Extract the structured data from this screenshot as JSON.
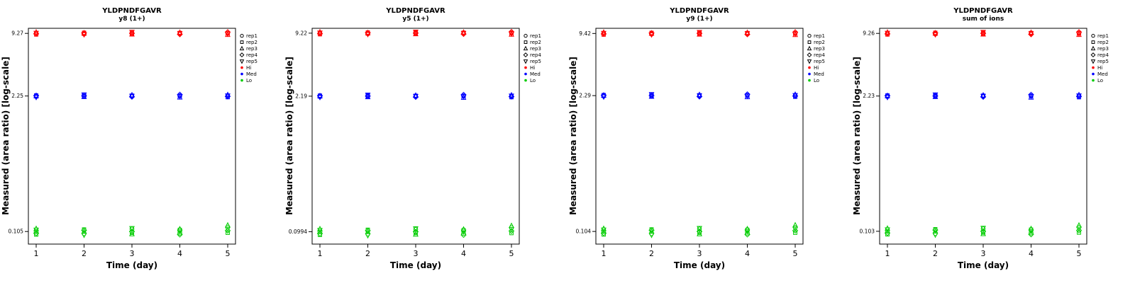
{
  "legend": {
    "items": [
      {
        "label": "rep1",
        "symbol": "circle"
      },
      {
        "label": "rep2",
        "symbol": "square"
      },
      {
        "label": "rep3",
        "symbol": "triangle-up"
      },
      {
        "label": "rep4",
        "symbol": "diamond"
      },
      {
        "label": "rep5",
        "symbol": "triangle-down"
      }
    ],
    "groups": [
      {
        "label": "Hi",
        "color": "#FF0000"
      },
      {
        "label": "Med",
        "color": "#0000FF"
      },
      {
        "label": "Lo",
        "color": "#00CC00"
      }
    ]
  },
  "chart_data": [
    {
      "type": "scatter",
      "title": "YLDPNDFGAVR",
      "subtitle": "y8 (1+)",
      "xlabel": "Time (day)",
      "ylabel": "Measured (area ratio) [log-scale]",
      "yscale": "log",
      "x": [
        1,
        2,
        3,
        4,
        5
      ],
      "ylim": [
        0.079,
        10.4
      ],
      "ytick_values": [
        9.27,
        2.25,
        0.105
      ],
      "ytick_labels": [
        "9.27",
        "2.25",
        "0.105"
      ],
      "series": [
        {
          "name": "Hi",
          "color": "#FF0000",
          "rep_values": [
            [
              9.27,
              9.04,
              9.5,
              9.18,
              9.36
            ],
            [
              9.13,
              9.41,
              9.27,
              9.36,
              9.04
            ],
            [
              9.46,
              9.18,
              9.08,
              9.27,
              9.55
            ],
            [
              9.18,
              9.36,
              9.46,
              9.08,
              9.27
            ],
            [
              9.36,
              9.27,
              8.99,
              9.55,
              9.18
            ]
          ]
        },
        {
          "name": "Med",
          "color": "#0000FF",
          "rep_values": [
            [
              2.22,
              2.28,
              2.25,
              2.27,
              2.19
            ],
            [
              2.3,
              2.23,
              2.21,
              2.25,
              2.32
            ],
            [
              2.23,
              2.27,
              2.3,
              2.21,
              2.25
            ],
            [
              2.27,
              2.25,
              2.18,
              2.32,
              2.23
            ],
            [
              2.25,
              2.19,
              2.31,
              2.23,
              2.27
            ]
          ]
        },
        {
          "name": "Lo",
          "color": "#00CC00",
          "rep_values": [
            [
              0.105,
              0.098,
              0.112,
              0.101,
              0.109
            ],
            [
              0.1,
              0.11,
              0.105,
              0.108,
              0.097
            ],
            [
              0.111,
              0.102,
              0.099,
              0.105,
              0.113
            ],
            [
              0.101,
              0.109,
              0.111,
              0.098,
              0.105
            ],
            [
              0.116,
              0.102,
              0.121,
              0.107,
              0.111
            ]
          ]
        }
      ]
    },
    {
      "type": "scatter",
      "title": "YLDPNDFGAVR",
      "subtitle": "y5 (1+)",
      "xlabel": "Time (day)",
      "ylabel": "Measured (area ratio) [log-scale]",
      "yscale": "log",
      "x": [
        1,
        2,
        3,
        4,
        5
      ],
      "ylim": [
        0.075,
        10.3
      ],
      "ytick_values": [
        9.22,
        2.19,
        0.0994
      ],
      "ytick_labels": [
        "9.22",
        "2.19",
        "0.0994"
      ],
      "series": [
        {
          "name": "Hi",
          "color": "#FF0000",
          "rep_values": [
            [
              9.22,
              8.99,
              9.45,
              9.13,
              9.31
            ],
            [
              9.08,
              9.36,
              9.22,
              9.31,
              8.99
            ],
            [
              9.4,
              9.13,
              9.04,
              9.22,
              9.5
            ],
            [
              9.13,
              9.31,
              9.4,
              9.04,
              9.22
            ],
            [
              9.31,
              9.22,
              8.94,
              9.5,
              9.13
            ]
          ]
        },
        {
          "name": "Med",
          "color": "#0000FF",
          "rep_values": [
            [
              2.16,
              2.22,
              2.19,
              2.21,
              2.14
            ],
            [
              2.23,
              2.17,
              2.15,
              2.19,
              2.26
            ],
            [
              2.17,
              2.21,
              2.23,
              2.15,
              2.19
            ],
            [
              2.21,
              2.19,
              2.12,
              2.26,
              2.17
            ],
            [
              2.19,
              2.14,
              2.24,
              2.17,
              2.21
            ]
          ]
        },
        {
          "name": "Lo",
          "color": "#00CC00",
          "rep_values": [
            [
              0.0994,
              0.0924,
              0.106,
              0.0954,
              0.103
            ],
            [
              0.0944,
              0.104,
              0.0994,
              0.102,
              0.0914
            ],
            [
              0.105,
              0.0964,
              0.0934,
              0.0994,
              0.107
            ],
            [
              0.0954,
              0.103,
              0.105,
              0.0924,
              0.0994
            ],
            [
              0.109,
              0.0964,
              0.114,
              0.101,
              0.105
            ]
          ]
        }
      ]
    },
    {
      "type": "scatter",
      "title": "YLDPNDFGAVR",
      "subtitle": "y9 (1+)",
      "xlabel": "Time (day)",
      "ylabel": "Measured (area ratio) [log-scale]",
      "yscale": "log",
      "x": [
        1,
        2,
        3,
        4,
        5
      ],
      "ylim": [
        0.078,
        10.6
      ],
      "ytick_values": [
        9.42,
        2.29,
        0.104
      ],
      "ytick_labels": [
        "9.42",
        "2.29",
        "0.104"
      ],
      "series": [
        {
          "name": "Hi",
          "color": "#FF0000",
          "rep_values": [
            [
              9.42,
              9.18,
              9.66,
              9.33,
              9.51
            ],
            [
              9.28,
              9.56,
              9.42,
              9.51,
              9.18
            ],
            [
              9.61,
              9.33,
              9.23,
              9.42,
              9.7
            ],
            [
              9.33,
              9.51,
              9.61,
              9.23,
              9.42
            ],
            [
              9.51,
              9.42,
              9.14,
              9.7,
              9.33
            ]
          ]
        },
        {
          "name": "Med",
          "color": "#0000FF",
          "rep_values": [
            [
              2.26,
              2.32,
              2.29,
              2.31,
              2.23
            ],
            [
              2.34,
              2.27,
              2.24,
              2.29,
              2.36
            ],
            [
              2.27,
              2.31,
              2.34,
              2.24,
              2.29
            ],
            [
              2.31,
              2.29,
              2.22,
              2.36,
              2.27
            ],
            [
              2.29,
              2.23,
              2.35,
              2.27,
              2.31
            ]
          ]
        },
        {
          "name": "Lo",
          "color": "#00CC00",
          "rep_values": [
            [
              0.104,
              0.097,
              0.111,
              0.1,
              0.108
            ],
            [
              0.099,
              0.109,
              0.104,
              0.107,
              0.096
            ],
            [
              0.11,
              0.101,
              0.098,
              0.104,
              0.112
            ],
            [
              0.1,
              0.108,
              0.11,
              0.097,
              0.104
            ],
            [
              0.114,
              0.101,
              0.12,
              0.106,
              0.11
            ]
          ]
        }
      ]
    },
    {
      "type": "scatter",
      "title": "YLDPNDFGAVR",
      "subtitle": "sum of ions",
      "xlabel": "Time (day)",
      "ylabel": "Measured (area ratio) [log-scale]",
      "yscale": "log",
      "x": [
        1,
        2,
        3,
        4,
        5
      ],
      "ylim": [
        0.077,
        10.4
      ],
      "ytick_values": [
        9.26,
        2.23,
        0.103
      ],
      "ytick_labels": [
        "9.26",
        "2.23",
        "0.103"
      ],
      "series": [
        {
          "name": "Hi",
          "color": "#FF0000",
          "rep_values": [
            [
              9.26,
              9.03,
              9.49,
              9.17,
              9.35
            ],
            [
              9.12,
              9.4,
              9.26,
              9.35,
              9.03
            ],
            [
              9.45,
              9.17,
              9.07,
              9.26,
              9.54
            ],
            [
              9.17,
              9.35,
              9.45,
              9.07,
              9.26
            ],
            [
              9.35,
              9.26,
              8.98,
              9.54,
              9.17
            ]
          ]
        },
        {
          "name": "Med",
          "color": "#0000FF",
          "rep_values": [
            [
              2.2,
              2.26,
              2.23,
              2.25,
              2.17
            ],
            [
              2.27,
              2.21,
              2.19,
              2.23,
              2.3
            ],
            [
              2.21,
              2.25,
              2.27,
              2.19,
              2.23
            ],
            [
              2.25,
              2.23,
              2.16,
              2.3,
              2.21
            ],
            [
              2.23,
              2.17,
              2.29,
              2.21,
              2.25
            ]
          ]
        },
        {
          "name": "Lo",
          "color": "#00CC00",
          "rep_values": [
            [
              0.103,
              0.096,
              0.11,
              0.099,
              0.107
            ],
            [
              0.098,
              0.108,
              0.103,
              0.106,
              0.095
            ],
            [
              0.109,
              0.1,
              0.097,
              0.103,
              0.111
            ],
            [
              0.099,
              0.107,
              0.109,
              0.096,
              0.103
            ],
            [
              0.113,
              0.1,
              0.118,
              0.105,
              0.109
            ]
          ]
        }
      ]
    }
  ]
}
